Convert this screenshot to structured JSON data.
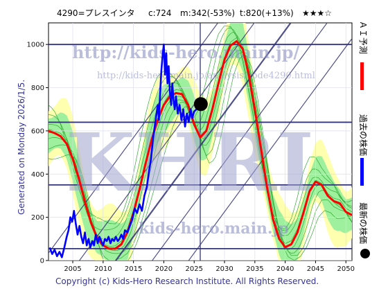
{
  "header": {
    "ticker": "4290=プレスインタ",
    "current": "c:724",
    "min": "m:342(-53%)",
    "target": "t:820(+13%)",
    "rating": "★★★☆"
  },
  "side_text": "Generated on Monday 2026/1/5.",
  "copyright": "Copyright (c) Kids-Hero Research Institute. All Rights Reserved.",
  "watermarks": {
    "big": "KHRI",
    "url_top": "http://kids-hero.main.jp/",
    "url_mid": "http://kids-hero.main.jp/analysis/code4290.html",
    "url_bottom": "kids-hero.main.jp"
  },
  "legend": {
    "ai": "ＡＩ予測",
    "past": "過去の株価",
    "latest": "最新の株価"
  },
  "colors": {
    "ai": "#ff0000",
    "past": "#0000ff",
    "latest": "#000000",
    "band_outer": "#ffffb0",
    "band_inner": "#9ef09e",
    "band_line": "#33aa33",
    "guide": "#333377"
  },
  "chart_data": {
    "type": "line",
    "xlim": [
      2001,
      2051
    ],
    "ylim": [
      0,
      1100
    ],
    "x_ticks": [
      2005,
      2010,
      2015,
      2020,
      2025,
      2030,
      2035,
      2040,
      2045,
      2050
    ],
    "y_ticks": [
      0,
      200,
      400,
      600,
      800,
      1000
    ],
    "horizontal_lines": [
      1000,
      640,
      350,
      55
    ],
    "vertical_line_x": 2026,
    "latest_point": {
      "x": 2026.1,
      "y": 724
    },
    "series": [
      {
        "key": "ai",
        "points": [
          [
            2001,
            600
          ],
          [
            2002,
            590
          ],
          [
            2003,
            575
          ],
          [
            2004,
            540
          ],
          [
            2005,
            470
          ],
          [
            2006,
            380
          ],
          [
            2007,
            270
          ],
          [
            2008,
            175
          ],
          [
            2009,
            105
          ],
          [
            2010,
            70
          ],
          [
            2011,
            55
          ],
          [
            2012,
            55
          ],
          [
            2013,
            75
          ],
          [
            2014,
            130
          ],
          [
            2015,
            220
          ],
          [
            2016,
            330
          ],
          [
            2017,
            450
          ],
          [
            2018,
            560
          ],
          [
            2019,
            650
          ],
          [
            2020,
            720
          ],
          [
            2021,
            760
          ],
          [
            2022,
            775
          ],
          [
            2023,
            770
          ],
          [
            2024,
            720
          ],
          [
            2025,
            630
          ],
          [
            2026,
            570
          ],
          [
            2027,
            600
          ],
          [
            2028,
            700
          ],
          [
            2029,
            820
          ],
          [
            2030,
            930
          ],
          [
            2031,
            995
          ],
          [
            2032,
            1015
          ],
          [
            2033,
            980
          ],
          [
            2034,
            860
          ],
          [
            2035,
            700
          ],
          [
            2036,
            520
          ],
          [
            2037,
            340
          ],
          [
            2038,
            190
          ],
          [
            2039,
            100
          ],
          [
            2040,
            62
          ],
          [
            2041,
            75
          ],
          [
            2042,
            130
          ],
          [
            2043,
            220
          ],
          [
            2044,
            320
          ],
          [
            2045,
            365
          ],
          [
            2046,
            350
          ],
          [
            2047,
            300
          ],
          [
            2048,
            275
          ],
          [
            2049,
            265
          ],
          [
            2050,
            225
          ],
          [
            2051,
            210
          ]
        ]
      },
      {
        "key": "past",
        "points": [
          [
            2001.2,
            60
          ],
          [
            2001.6,
            30
          ],
          [
            2002.0,
            50
          ],
          [
            2002.4,
            20
          ],
          [
            2002.8,
            40
          ],
          [
            2003.2,
            15
          ],
          [
            2003.6,
            60
          ],
          [
            2004.0,
            110
          ],
          [
            2004.3,
            140
          ],
          [
            2004.6,
            200
          ],
          [
            2004.9,
            180
          ],
          [
            2005.2,
            230
          ],
          [
            2005.5,
            170
          ],
          [
            2005.8,
            120
          ],
          [
            2006.1,
            160
          ],
          [
            2006.4,
            110
          ],
          [
            2006.7,
            80
          ],
          [
            2007.0,
            130
          ],
          [
            2007.3,
            70
          ],
          [
            2007.6,
            100
          ],
          [
            2007.9,
            60
          ],
          [
            2008.2,
            90
          ],
          [
            2008.5,
            70
          ],
          [
            2008.8,
            120
          ],
          [
            2009.1,
            80
          ],
          [
            2009.4,
            110
          ],
          [
            2009.7,
            90
          ],
          [
            2010.0,
            70
          ],
          [
            2010.3,
            100
          ],
          [
            2010.6,
            90
          ],
          [
            2010.9,
            110
          ],
          [
            2011.2,
            80
          ],
          [
            2011.5,
            100
          ],
          [
            2011.8,
            90
          ],
          [
            2012.1,
            110
          ],
          [
            2012.4,
            90
          ],
          [
            2012.7,
            100
          ],
          [
            2013.0,
            120
          ],
          [
            2013.3,
            100
          ],
          [
            2013.6,
            140
          ],
          [
            2014.0,
            130
          ],
          [
            2014.4,
            160
          ],
          [
            2014.8,
            190
          ],
          [
            2015.2,
            240
          ],
          [
            2015.6,
            220
          ],
          [
            2016.0,
            260
          ],
          [
            2016.4,
            230
          ],
          [
            2016.8,
            300
          ],
          [
            2017.2,
            340
          ],
          [
            2017.6,
            420
          ],
          [
            2017.9,
            470
          ],
          [
            2018.2,
            560
          ],
          [
            2018.5,
            620
          ],
          [
            2018.8,
            680
          ],
          [
            2019.0,
            720
          ],
          [
            2019.2,
            650
          ],
          [
            2019.4,
            780
          ],
          [
            2019.6,
            880
          ],
          [
            2019.8,
            950
          ],
          [
            2020.0,
            1000
          ],
          [
            2020.2,
            860
          ],
          [
            2020.4,
            960
          ],
          [
            2020.6,
            820
          ],
          [
            2020.8,
            900
          ],
          [
            2021.0,
            780
          ],
          [
            2021.2,
            720
          ],
          [
            2021.4,
            820
          ],
          [
            2021.6,
            740
          ],
          [
            2021.8,
            700
          ],
          [
            2022.0,
            760
          ],
          [
            2022.3,
            680
          ],
          [
            2022.6,
            720
          ],
          [
            2022.9,
            650
          ],
          [
            2023.2,
            700
          ],
          [
            2023.5,
            620
          ],
          [
            2023.8,
            680
          ],
          [
            2024.1,
            640
          ],
          [
            2024.4,
            700
          ],
          [
            2024.7,
            660
          ],
          [
            2025.0,
            690
          ],
          [
            2025.4,
            700
          ],
          [
            2025.8,
            710
          ],
          [
            2026.1,
            724
          ]
        ]
      }
    ]
  }
}
